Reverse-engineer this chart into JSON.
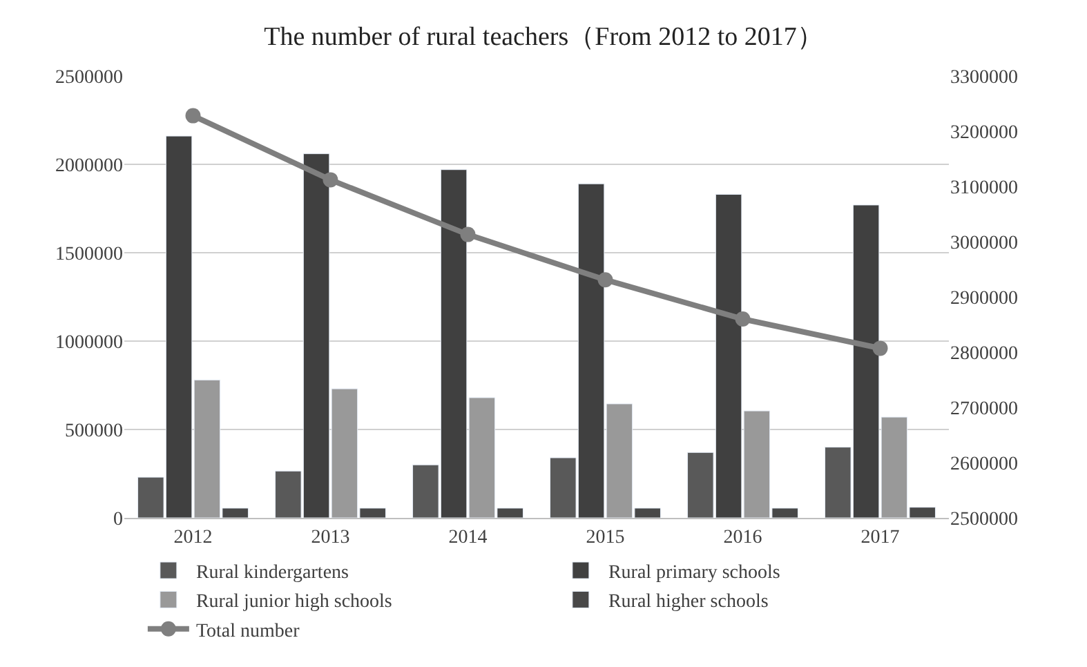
{
  "chart_data": {
    "type": "bar",
    "title": "The number of rural teachers（From 2012 to 2017）",
    "categories": [
      "2012",
      "2013",
      "2014",
      "2015",
      "2016",
      "2017"
    ],
    "series": [
      {
        "name": "Rural kindergartens",
        "color": "#595959",
        "values": [
          230000,
          265000,
          300000,
          340000,
          370000,
          400000
        ]
      },
      {
        "name": "Rural primary schools",
        "color": "#404040",
        "values": [
          2160000,
          2060000,
          1970000,
          1890000,
          1830000,
          1770000
        ]
      },
      {
        "name": "Rural junior high schools",
        "color": "#999999",
        "values": [
          780000,
          730000,
          680000,
          645000,
          605000,
          570000
        ]
      },
      {
        "name": "Rural higher schools",
        "color": "#484848",
        "values": [
          55000,
          55000,
          55000,
          55000,
          55000,
          60000
        ]
      },
      {
        "name": "Total number",
        "color": "#7f7f7f",
        "type": "line",
        "axis": "y2",
        "marker": "circle",
        "values": [
          3228000,
          3112000,
          3013000,
          2931000,
          2860000,
          2807000
        ]
      }
    ],
    "ylim": [
      0,
      2500000
    ],
    "yticks": [
      0,
      500000,
      1000000,
      1500000,
      2000000,
      2500000
    ],
    "y2lim": [
      2500000,
      3300000
    ],
    "y2ticks": [
      2500000,
      2600000,
      2700000,
      2800000,
      2900000,
      3000000,
      3100000,
      3200000,
      3300000
    ],
    "grid": "y",
    "legend": "bottom"
  }
}
